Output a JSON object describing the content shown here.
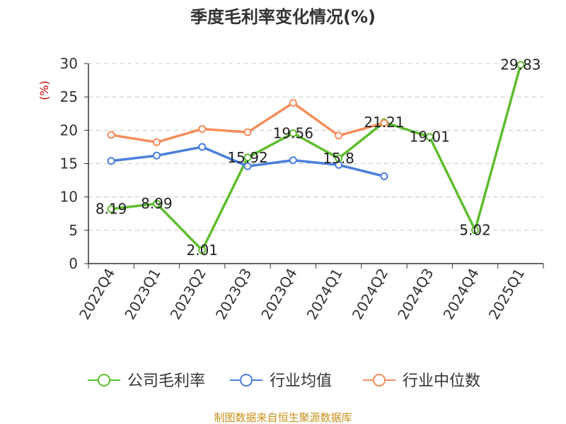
{
  "chart_data": {
    "type": "line",
    "title": "季度毛利率变化情况(%)",
    "ylabel": "(%)",
    "ylim": [
      0,
      30
    ],
    "yticks": [
      0,
      5,
      10,
      15,
      20,
      25,
      30
    ],
    "grid": true,
    "legend_position": "bottom",
    "categories": [
      "2022Q4",
      "2023Q1",
      "2023Q2",
      "2023Q3",
      "2023Q4",
      "2024Q1",
      "2024Q2",
      "2024Q3",
      "2024Q4",
      "2025Q1"
    ],
    "series": [
      {
        "name": "公司毛利率",
        "color": "#5ebd2e",
        "values": [
          8.19,
          8.99,
          2.01,
          15.92,
          19.56,
          15.8,
          21.21,
          19.01,
          5.02,
          29.83
        ],
        "labels": [
          "8.19",
          "8.99",
          "2.01",
          "15.92",
          "19.56",
          "15.8",
          "21.21",
          "19.01",
          "5.02",
          "29.83"
        ]
      },
      {
        "name": "行业均值",
        "color": "#4a7fdc",
        "values": [
          15.4,
          16.2,
          17.5,
          14.6,
          15.5,
          14.8,
          13.1,
          null,
          null,
          null
        ]
      },
      {
        "name": "行业中位数",
        "color": "#f58d5a",
        "values": [
          19.3,
          18.2,
          20.2,
          19.7,
          24.1,
          19.2,
          21.1,
          null,
          null,
          null
        ]
      }
    ]
  },
  "source": {
    "text": "制图数据来自恒生聚源数据库",
    "color": "#c8901a"
  }
}
